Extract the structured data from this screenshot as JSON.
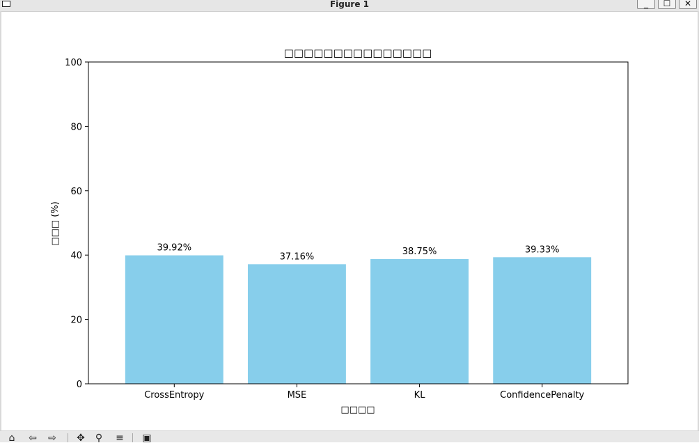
{
  "window": {
    "title": "Figure 1",
    "controls": {
      "minimize": "_",
      "maximize": "☐",
      "close": "✕"
    }
  },
  "toolbar": {
    "buttons": [
      {
        "name": "home-icon",
        "glyph": "⌂"
      },
      {
        "name": "back-icon",
        "glyph": "⇦"
      },
      {
        "name": "forward-icon",
        "glyph": "⇨"
      },
      {
        "name": "pan-icon",
        "glyph": "✥"
      },
      {
        "name": "zoom-icon",
        "glyph": "⚲"
      },
      {
        "name": "configure-subplots-icon",
        "glyph": "≡"
      },
      {
        "name": "save-icon",
        "glyph": "▣"
      }
    ]
  },
  "chart_data": {
    "type": "bar",
    "title": "□□□□□□□□□□□□□□□",
    "xlabel": "□□□□",
    "ylabel": "□□□ (%)",
    "categories": [
      "CrossEntropy",
      "MSE",
      "KL",
      "ConfidencePenalty"
    ],
    "values": [
      39.92,
      37.16,
      38.75,
      39.33
    ],
    "data_labels": [
      "39.92%",
      "37.16%",
      "38.75%",
      "39.33%"
    ],
    "ylim": [
      0,
      100
    ],
    "yticks": [
      0,
      20,
      40,
      60,
      80,
      100
    ],
    "bar_color": "#87ceeb",
    "grid": false,
    "legend": "none"
  }
}
